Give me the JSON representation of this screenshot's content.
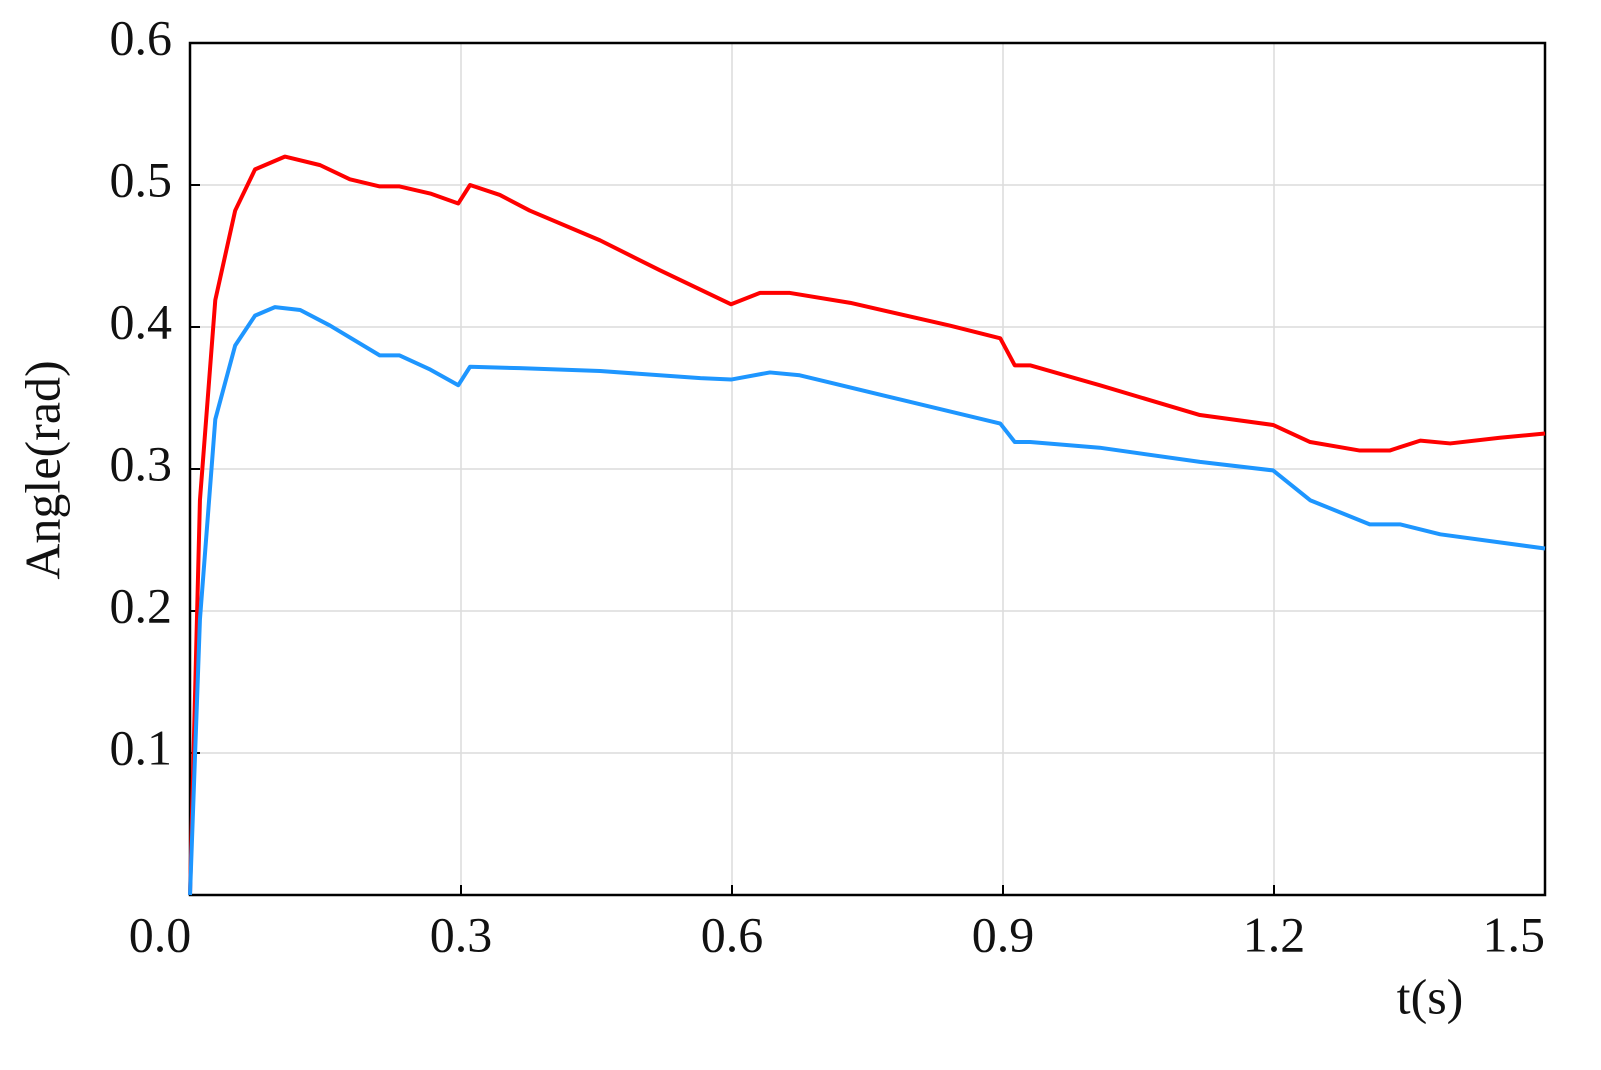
{
  "chart_data": {
    "type": "line",
    "xlabel": "t(s)",
    "ylabel": "Angle(rad)",
    "xlim": [
      0,
      1.5
    ],
    "ylim": [
      0,
      0.6
    ],
    "xticks": [
      {
        "value": 0,
        "label": "0.0"
      },
      0.3,
      0.6,
      0.9,
      1.2,
      1.5
    ],
    "yticks": [
      0.1,
      0.2,
      0.3,
      0.4,
      0.5,
      0.6
    ],
    "grid": true,
    "series": [
      {
        "color": "#ff0000",
        "x": [
          0,
          0.011,
          0.028,
          0.05,
          0.072,
          0.105,
          0.144,
          0.177,
          0.21,
          0.232,
          0.266,
          0.297,
          0.31,
          0.343,
          0.376,
          0.454,
          0.52,
          0.599,
          0.631,
          0.664,
          0.731,
          0.841,
          0.897,
          0.913,
          0.93,
          1.007,
          1.118,
          1.199,
          1.24,
          1.295,
          1.328,
          1.362,
          1.395,
          1.45,
          1.5
        ],
        "values": [
          0,
          0.278,
          0.419,
          0.482,
          0.511,
          0.52,
          0.514,
          0.504,
          0.499,
          0.499,
          0.494,
          0.487,
          0.5,
          0.493,
          0.482,
          0.461,
          0.44,
          0.416,
          0.424,
          0.424,
          0.417,
          0.401,
          0.392,
          0.373,
          0.373,
          0.359,
          0.338,
          0.331,
          0.319,
          0.313,
          0.313,
          0.32,
          0.318,
          0.322,
          0.325
        ]
      },
      {
        "color": "#1e96ff",
        "x": [
          0,
          0.011,
          0.028,
          0.05,
          0.072,
          0.094,
          0.122,
          0.155,
          0.21,
          0.232,
          0.266,
          0.297,
          0.31,
          0.365,
          0.454,
          0.565,
          0.599,
          0.642,
          0.675,
          0.786,
          0.897,
          0.913,
          0.93,
          1.007,
          1.118,
          1.199,
          1.24,
          1.306,
          1.34,
          1.384,
          1.5
        ],
        "values": [
          0,
          0.194,
          0.335,
          0.387,
          0.408,
          0.414,
          0.412,
          0.401,
          0.38,
          0.38,
          0.37,
          0.359,
          0.372,
          0.371,
          0.369,
          0.364,
          0.363,
          0.368,
          0.366,
          0.349,
          0.332,
          0.319,
          0.319,
          0.315,
          0.305,
          0.299,
          0.278,
          0.261,
          0.261,
          0.254,
          0.244
        ]
      }
    ]
  }
}
